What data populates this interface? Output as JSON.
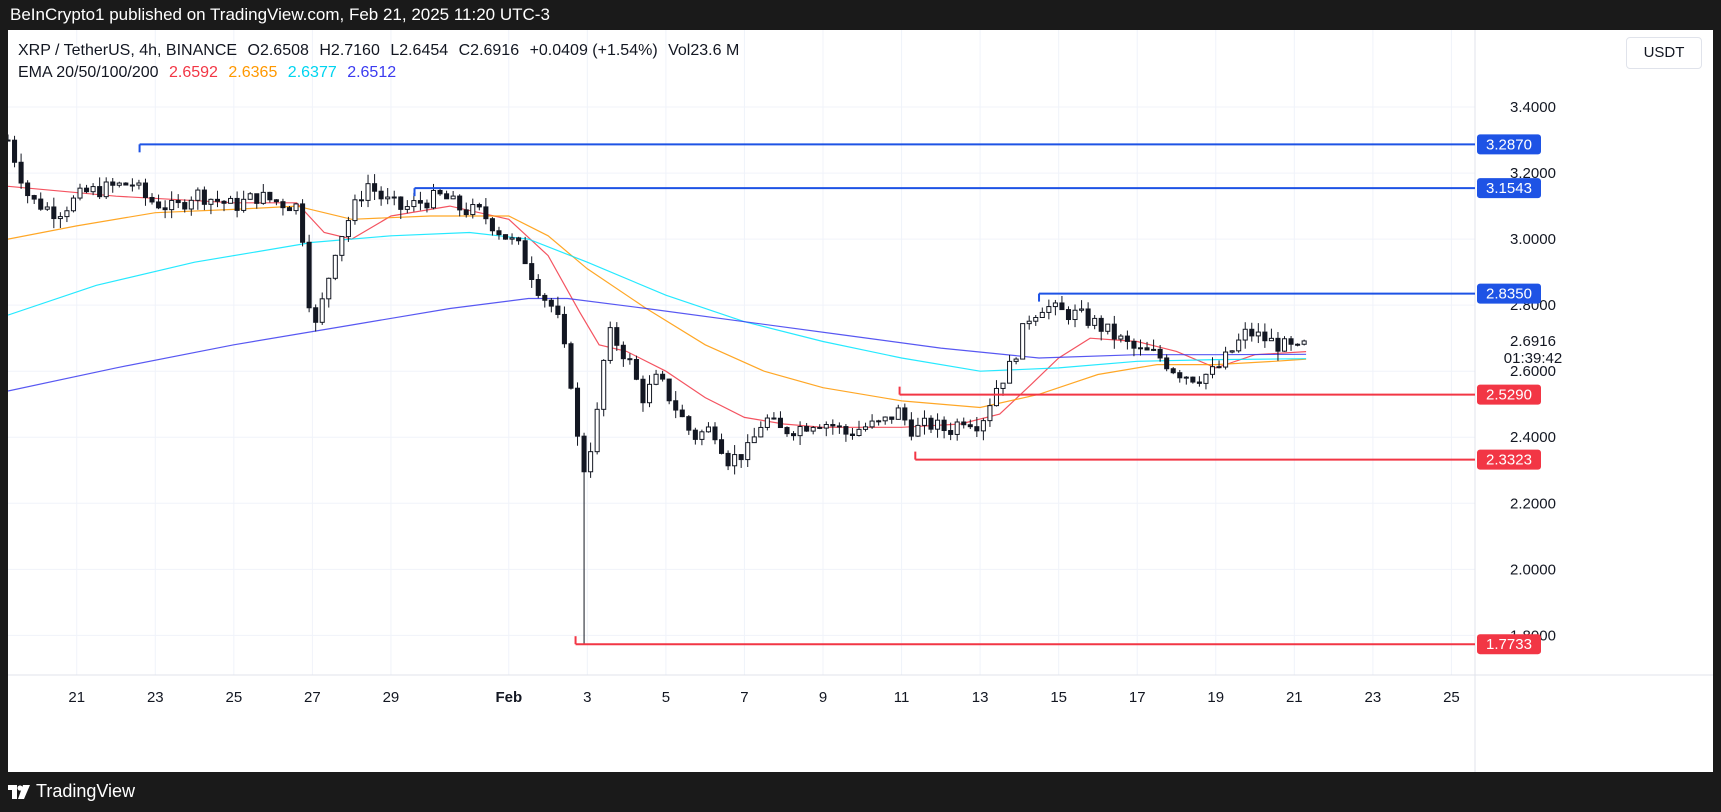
{
  "header": {
    "publisher": "BeInCrypto1 published on TradingView.com, Feb 21, 2025 11:20 UTC-3"
  },
  "footer": {
    "brand": "TradingView"
  },
  "legend": {
    "symbol": "XRP / TetherUS, 4h, BINANCE",
    "open": "O2.6508",
    "high": "H2.7160",
    "low": "L2.6454",
    "close": "C2.6916",
    "change": "+0.0409 (+1.54%)",
    "volume": "Vol23.6 M",
    "ema_label": "EMA 20/50/100/200",
    "ema_values": [
      "2.6592",
      "2.6365",
      "2.6377",
      "2.6512"
    ]
  },
  "unit_button": "USDT",
  "colors": {
    "ema20": "#f23645",
    "ema50": "#ff9800",
    "ema100": "#00e5ff",
    "ema200": "#3b3bf0",
    "resistance": "#1e53e5",
    "support": "#f23645",
    "text": "#131722",
    "grid": "#f0f3fa"
  },
  "chart_data": {
    "type": "candlestick",
    "title": "XRP / TetherUS, 4h, BINANCE",
    "ylim": [
      1.68,
      3.5
    ],
    "y_ticks": [
      "3.4000",
      "3.2000",
      "3.0000",
      "2.8000",
      "2.6000",
      "2.4000",
      "2.2000",
      "2.0000",
      "1.8000"
    ],
    "y_tick_values": [
      3.4,
      3.2,
      3.0,
      2.8,
      2.6,
      2.4,
      2.2,
      2.0,
      1.8
    ],
    "x_range_days": [
      -0.75,
      36.6
    ],
    "x_ticks": [
      {
        "day": 1,
        "label": "21"
      },
      {
        "day": 3,
        "label": "23"
      },
      {
        "day": 5,
        "label": "25"
      },
      {
        "day": 7,
        "label": "27"
      },
      {
        "day": 9,
        "label": "29"
      },
      {
        "day": 12,
        "label": "Feb",
        "bold": true
      },
      {
        "day": 14,
        "label": "3"
      },
      {
        "day": 16,
        "label": "5"
      },
      {
        "day": 18,
        "label": "7"
      },
      {
        "day": 20,
        "label": "9"
      },
      {
        "day": 22,
        "label": "11"
      },
      {
        "day": 24,
        "label": "13"
      },
      {
        "day": 26,
        "label": "15"
      },
      {
        "day": 28,
        "label": "17"
      },
      {
        "day": 30,
        "label": "19"
      },
      {
        "day": 32,
        "label": "21"
      },
      {
        "day": 34,
        "label": "23"
      },
      {
        "day": 36,
        "label": "25"
      }
    ],
    "last_price": "2.6916",
    "countdown": "01:39:42",
    "resistance_levels": [
      {
        "price": 3.287,
        "label": "3.2870",
        "from_day": 2.6
      },
      {
        "price": 3.1543,
        "label": "3.1543",
        "from_day": 9.6
      },
      {
        "price": 2.835,
        "label": "2.8350",
        "from_day": 25.5
      }
    ],
    "support_levels": [
      {
        "price": 2.529,
        "label": "2.5290",
        "from_day": 21.95
      },
      {
        "price": 2.3323,
        "label": "2.3323",
        "from_day": 22.35
      },
      {
        "price": 1.7733,
        "label": "1.7733",
        "from_day": 13.7
      }
    ],
    "price_path": [
      [
        -0.75,
        3.3
      ],
      [
        -0.2,
        3.12
      ],
      [
        0.5,
        3.08
      ],
      [
        1.2,
        3.14
      ],
      [
        2.0,
        3.16
      ],
      [
        2.4,
        3.17
      ],
      [
        2.8,
        3.12
      ],
      [
        3.5,
        3.09
      ],
      [
        4.0,
        3.14
      ],
      [
        4.5,
        3.12
      ],
      [
        5.0,
        3.1
      ],
      [
        5.6,
        3.13
      ],
      [
        6.2,
        3.11
      ],
      [
        6.6,
        3.1
      ],
      [
        6.8,
        2.98
      ],
      [
        7.0,
        2.7
      ],
      [
        7.3,
        2.83
      ],
      [
        7.6,
        2.98
      ],
      [
        8.0,
        3.08
      ],
      [
        8.4,
        3.17
      ],
      [
        8.8,
        3.12
      ],
      [
        9.3,
        3.09
      ],
      [
        9.7,
        3.11
      ],
      [
        10.3,
        3.13
      ],
      [
        10.8,
        3.09
      ],
      [
        11.3,
        3.08
      ],
      [
        11.8,
        3.02
      ],
      [
        12.3,
        2.97
      ],
      [
        12.8,
        2.84
      ],
      [
        13.2,
        2.78
      ],
      [
        13.6,
        2.56
      ],
      [
        13.85,
        2.28
      ],
      [
        14.1,
        2.38
      ],
      [
        14.3,
        2.5
      ],
      [
        14.5,
        2.72
      ],
      [
        14.8,
        2.68
      ],
      [
        15.1,
        2.62
      ],
      [
        15.4,
        2.52
      ],
      [
        15.8,
        2.58
      ],
      [
        16.3,
        2.48
      ],
      [
        16.7,
        2.4
      ],
      [
        17.2,
        2.43
      ],
      [
        17.6,
        2.33
      ],
      [
        18.1,
        2.36
      ],
      [
        18.5,
        2.46
      ],
      [
        18.9,
        2.42
      ],
      [
        19.4,
        2.43
      ],
      [
        19.8,
        2.45
      ],
      [
        20.2,
        2.44
      ],
      [
        20.6,
        2.41
      ],
      [
        21.0,
        2.43
      ],
      [
        21.5,
        2.44
      ],
      [
        21.9,
        2.48
      ],
      [
        22.3,
        2.42
      ],
      [
        22.7,
        2.44
      ],
      [
        23.2,
        2.42
      ],
      [
        23.6,
        2.46
      ],
      [
        24.0,
        2.44
      ],
      [
        24.4,
        2.55
      ],
      [
        24.8,
        2.62
      ],
      [
        25.2,
        2.76
      ],
      [
        25.6,
        2.8
      ],
      [
        26.0,
        2.78
      ],
      [
        26.5,
        2.77
      ],
      [
        27.0,
        2.74
      ],
      [
        27.5,
        2.7
      ],
      [
        28.0,
        2.66
      ],
      [
        28.5,
        2.65
      ],
      [
        29.0,
        2.6
      ],
      [
        29.5,
        2.58
      ],
      [
        30.0,
        2.6
      ],
      [
        30.4,
        2.66
      ],
      [
        30.8,
        2.72
      ],
      [
        31.2,
        2.7
      ],
      [
        31.6,
        2.68
      ],
      [
        32.1,
        2.66
      ],
      [
        32.3,
        2.6916
      ]
    ],
    "series": [
      {
        "name": "EMA 20",
        "color": "#f23645",
        "points": [
          [
            -0.75,
            3.16
          ],
          [
            2,
            3.13
          ],
          [
            5,
            3.11
          ],
          [
            6.6,
            3.11
          ],
          [
            7.3,
            3.02
          ],
          [
            8,
            3.0
          ],
          [
            9,
            3.07
          ],
          [
            10.5,
            3.1
          ],
          [
            12,
            3.06
          ],
          [
            13,
            2.95
          ],
          [
            13.8,
            2.78
          ],
          [
            14.3,
            2.68
          ],
          [
            15,
            2.66
          ],
          [
            16,
            2.6
          ],
          [
            17,
            2.52
          ],
          [
            18,
            2.46
          ],
          [
            19,
            2.44
          ],
          [
            20,
            2.43
          ],
          [
            22,
            2.43
          ],
          [
            23.5,
            2.44
          ],
          [
            24.5,
            2.47
          ],
          [
            25.3,
            2.56
          ],
          [
            26,
            2.64
          ],
          [
            26.8,
            2.7
          ],
          [
            28,
            2.69
          ],
          [
            29,
            2.66
          ],
          [
            30,
            2.61
          ],
          [
            31,
            2.65
          ],
          [
            32.3,
            2.6592
          ]
        ]
      },
      {
        "name": "EMA 50",
        "color": "#ff9800",
        "points": [
          [
            -0.75,
            3.0
          ],
          [
            1,
            3.04
          ],
          [
            3,
            3.08
          ],
          [
            5,
            3.09
          ],
          [
            6.6,
            3.1
          ],
          [
            8,
            3.06
          ],
          [
            10,
            3.07
          ],
          [
            12,
            3.07
          ],
          [
            13,
            3.01
          ],
          [
            14,
            2.91
          ],
          [
            15.5,
            2.79
          ],
          [
            17,
            2.68
          ],
          [
            18.5,
            2.6
          ],
          [
            20,
            2.55
          ],
          [
            22,
            2.51
          ],
          [
            24,
            2.49
          ],
          [
            25.5,
            2.53
          ],
          [
            27,
            2.59
          ],
          [
            28.5,
            2.62
          ],
          [
            30,
            2.62
          ],
          [
            31.5,
            2.63
          ],
          [
            32.3,
            2.6365
          ]
        ]
      },
      {
        "name": "EMA 100",
        "color": "#00e5ff",
        "points": [
          [
            -0.75,
            2.77
          ],
          [
            1.5,
            2.86
          ],
          [
            4,
            2.93
          ],
          [
            7,
            2.99
          ],
          [
            9,
            3.01
          ],
          [
            11,
            3.02
          ],
          [
            12.5,
            3.0
          ],
          [
            14,
            2.93
          ],
          [
            16,
            2.83
          ],
          [
            18,
            2.75
          ],
          [
            20,
            2.69
          ],
          [
            22,
            2.64
          ],
          [
            24,
            2.6
          ],
          [
            26,
            2.61
          ],
          [
            28,
            2.63
          ],
          [
            30,
            2.635
          ],
          [
            32.3,
            2.6377
          ]
        ]
      },
      {
        "name": "EMA 200",
        "color": "#3b3bf0",
        "points": [
          [
            -0.75,
            2.54
          ],
          [
            2,
            2.61
          ],
          [
            5,
            2.68
          ],
          [
            8,
            2.74
          ],
          [
            10.5,
            2.79
          ],
          [
            12.5,
            2.82
          ],
          [
            13.5,
            2.82
          ],
          [
            15.5,
            2.79
          ],
          [
            18,
            2.75
          ],
          [
            20.5,
            2.71
          ],
          [
            23,
            2.67
          ],
          [
            25.5,
            2.64
          ],
          [
            28,
            2.65
          ],
          [
            30,
            2.65
          ],
          [
            32.3,
            2.6512
          ]
        ]
      }
    ]
  }
}
